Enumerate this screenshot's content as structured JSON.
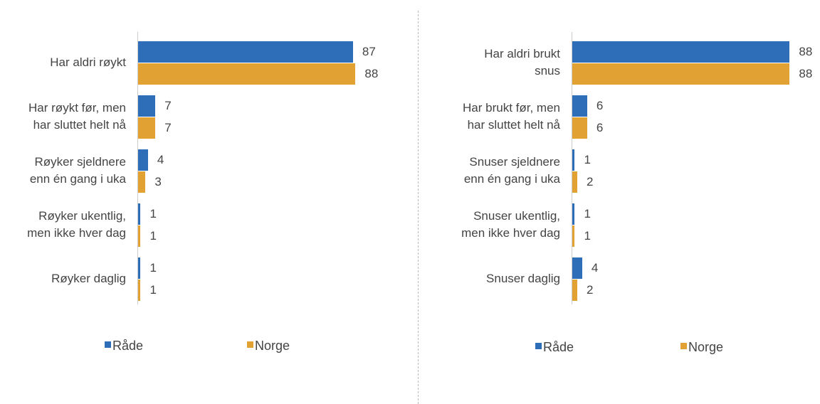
{
  "chart_data": [
    {
      "type": "bar",
      "orientation": "horizontal",
      "categories": [
        "Har aldri røykt",
        "Har røykt før, men\nhar sluttet helt nå",
        "Røyker sjeldnere\nenn én gang i uka",
        "Røyker ukentlig,\nmen ikke hver dag",
        "Røyker daglig"
      ],
      "series": [
        {
          "name": "Råde",
          "color": "#2e6db7",
          "values": [
            87,
            7,
            4,
            1,
            1
          ]
        },
        {
          "name": "Norge",
          "color": "#e2a233",
          "values": [
            88,
            7,
            3,
            1,
            1
          ]
        }
      ],
      "xlim": [
        0,
        100
      ],
      "legend": "bottom"
    },
    {
      "type": "bar",
      "orientation": "horizontal",
      "categories": [
        "Har aldri brukt\nsnus",
        "Har brukt før, men\nhar sluttet helt nå",
        "Snuser sjeldnere\nenn én gang i uka",
        "Snuser ukentlig,\nmen ikke hver dag",
        "Snuser daglig"
      ],
      "series": [
        {
          "name": "Råde",
          "color": "#2e6db7",
          "values": [
            88,
            6,
            1,
            1,
            4
          ]
        },
        {
          "name": "Norge",
          "color": "#e2a233",
          "values": [
            88,
            6,
            2,
            1,
            2
          ]
        }
      ],
      "xlim": [
        0,
        100
      ],
      "legend": "bottom"
    }
  ]
}
